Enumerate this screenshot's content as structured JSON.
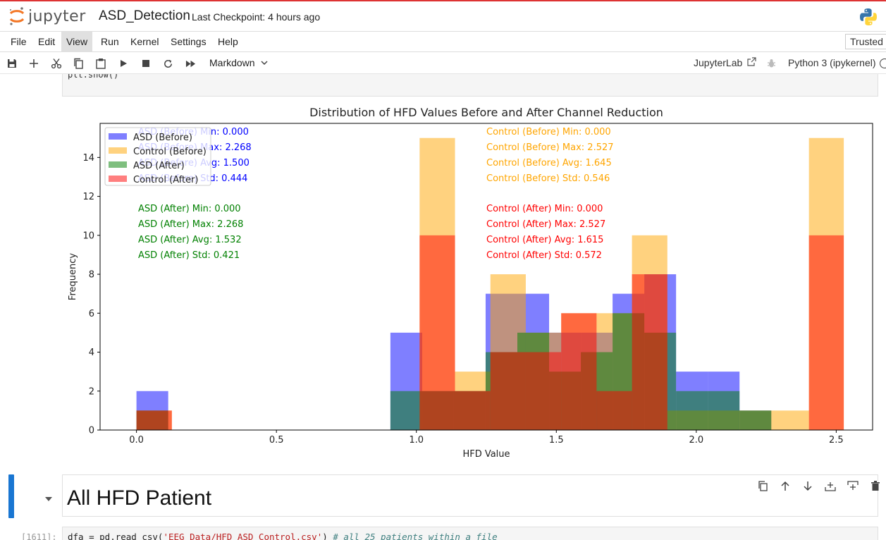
{
  "header": {
    "logo_text": "jupyter",
    "notebook_title": "ASD_Detection",
    "checkpoint": "Last Checkpoint: 4 hours ago"
  },
  "menu": {
    "items": [
      "File",
      "Edit",
      "View",
      "Run",
      "Kernel",
      "Settings",
      "Help"
    ],
    "active": "View",
    "trusted": "Trusted"
  },
  "toolbar": {
    "cell_type": "Markdown",
    "jupyterlab_label": "JupyterLab",
    "kernel_name": "Python 3 (ipykernel)"
  },
  "previous_cell": {
    "code_tail": "plt.show()"
  },
  "markdown_cell": {
    "heading": "All HFD Patient"
  },
  "next_cell": {
    "prompt": "[1611]:",
    "code_part1": "dfa = pd.read_csv(",
    "code_string": "'EEG Data/HFD_ASD_Control.csv'",
    "code_part2": ") ",
    "code_comment": "# all 25 patients within a file"
  },
  "colors": {
    "asd_before": "#0000ff",
    "control_before": "#ffa500",
    "asd_after": "#008000",
    "control_after": "#ff0000",
    "active_cell_marker": "#1976d2"
  },
  "chart_data": {
    "type": "histogram",
    "title": "Distribution of HFD Values Before and After Channel Reduction",
    "xlabel": "HFD Value",
    "ylabel": "Frequency",
    "xlim": [
      -0.13,
      2.63
    ],
    "ylim": [
      0,
      15.75
    ],
    "xticks": [
      0.0,
      0.5,
      1.0,
      1.5,
      2.0,
      2.5
    ],
    "yticks": [
      0,
      2,
      4,
      6,
      8,
      10,
      12,
      14
    ],
    "legend": {
      "placement": "top-left",
      "entries": [
        "ASD (Before)",
        "Control (Before)",
        "ASD (After)",
        "Control (After)"
      ]
    },
    "series": [
      {
        "name": "ASD (Before)",
        "color": "#0000ff",
        "alpha": 0.5,
        "bins": [
          [
            0.0,
            0.1134,
            2
          ],
          [
            0.9072,
            1.0206,
            5
          ],
          [
            1.0206,
            1.134,
            2
          ],
          [
            1.134,
            1.2474,
            2
          ],
          [
            1.2474,
            1.3608,
            7
          ],
          [
            1.3608,
            1.4742,
            7
          ],
          [
            1.4742,
            1.5876,
            5
          ],
          [
            1.5876,
            1.701,
            5
          ],
          [
            1.701,
            1.8144,
            7
          ],
          [
            1.8144,
            1.9278,
            8
          ],
          [
            1.9278,
            2.0412,
            3
          ],
          [
            2.0412,
            2.1546,
            3
          ],
          [
            2.1546,
            2.268,
            1
          ]
        ]
      },
      {
        "name": "Control (Before)",
        "color": "#ffa500",
        "alpha": 0.5,
        "bins": [
          [
            0.0,
            0.1264,
            1
          ],
          [
            1.0116,
            1.138,
            15
          ],
          [
            1.138,
            1.2645,
            3
          ],
          [
            1.2645,
            1.3909,
            8
          ],
          [
            1.3909,
            1.5174,
            5
          ],
          [
            1.5174,
            1.6438,
            6
          ],
          [
            1.6438,
            1.7703,
            6
          ],
          [
            1.7703,
            1.8967,
            10
          ],
          [
            1.8967,
            2.0232,
            1
          ],
          [
            2.0232,
            2.1496,
            1
          ],
          [
            2.1496,
            2.2761,
            1
          ],
          [
            2.2761,
            2.4025,
            1
          ],
          [
            2.4025,
            2.527,
            15
          ]
        ]
      },
      {
        "name": "ASD (After)",
        "color": "#008000",
        "alpha": 0.5,
        "bins": [
          [
            0.0,
            0.1134,
            1
          ],
          [
            0.9072,
            1.0206,
            2
          ],
          [
            1.0206,
            1.134,
            2
          ],
          [
            1.134,
            1.2474,
            2
          ],
          [
            1.2474,
            1.3608,
            4
          ],
          [
            1.3608,
            1.4742,
            5
          ],
          [
            1.4742,
            1.5876,
            3
          ],
          [
            1.5876,
            1.701,
            4
          ],
          [
            1.701,
            1.8144,
            6
          ],
          [
            1.8144,
            1.9278,
            5
          ],
          [
            1.9278,
            2.0412,
            2
          ],
          [
            2.0412,
            2.1546,
            2
          ],
          [
            2.1546,
            2.268,
            1
          ]
        ]
      },
      {
        "name": "Control (After)",
        "color": "#ff0000",
        "alpha": 0.5,
        "bins": [
          [
            0.0,
            0.1264,
            1
          ],
          [
            1.0116,
            1.138,
            10
          ],
          [
            1.138,
            1.2645,
            2
          ],
          [
            1.2645,
            1.3909,
            4
          ],
          [
            1.3909,
            1.5174,
            4
          ],
          [
            1.5174,
            1.6438,
            6
          ],
          [
            1.6438,
            1.7703,
            2
          ],
          [
            1.7703,
            1.8967,
            8
          ],
          [
            2.4025,
            2.527,
            10
          ]
        ]
      }
    ],
    "annotations": [
      {
        "text": "ASD (Before) Min: 0.000",
        "color": "#0000ff",
        "group": "left-1",
        "line": 0
      },
      {
        "text": "ASD (Before) Max: 2.268",
        "color": "#0000ff",
        "group": "left-1",
        "line": 1
      },
      {
        "text": "ASD (Before) Avg: 1.500",
        "color": "#0000ff",
        "group": "left-1",
        "line": 2
      },
      {
        "text": "ASD (Before) Std: 0.444",
        "color": "#0000ff",
        "group": "left-1",
        "line": 3
      },
      {
        "text": "ASD (After) Min: 0.000",
        "color": "#008000",
        "group": "left-2",
        "line": 0
      },
      {
        "text": "ASD (After) Max: 2.268",
        "color": "#008000",
        "group": "left-2",
        "line": 1
      },
      {
        "text": "ASD (After) Avg: 1.532",
        "color": "#008000",
        "group": "left-2",
        "line": 2
      },
      {
        "text": "ASD (After) Std: 0.421",
        "color": "#008000",
        "group": "left-2",
        "line": 3
      },
      {
        "text": "Control (Before) Min: 0.000",
        "color": "#ffa500",
        "group": "right-1",
        "line": 0
      },
      {
        "text": "Control (Before) Max: 2.527",
        "color": "#ffa500",
        "group": "right-1",
        "line": 1
      },
      {
        "text": "Control (Before) Avg: 1.645",
        "color": "#ffa500",
        "group": "right-1",
        "line": 2
      },
      {
        "text": "Control (Before) Std: 0.546",
        "color": "#ffa500",
        "group": "right-1",
        "line": 3
      },
      {
        "text": "Control (After) Min: 0.000",
        "color": "#ff0000",
        "group": "right-2",
        "line": 0
      },
      {
        "text": "Control (After) Max: 2.527",
        "color": "#ff0000",
        "group": "right-2",
        "line": 1
      },
      {
        "text": "Control (After) Avg: 1.615",
        "color": "#ff0000",
        "group": "right-2",
        "line": 2
      },
      {
        "text": "Control (After) Std: 0.572",
        "color": "#ff0000",
        "group": "right-2",
        "line": 3
      }
    ]
  }
}
